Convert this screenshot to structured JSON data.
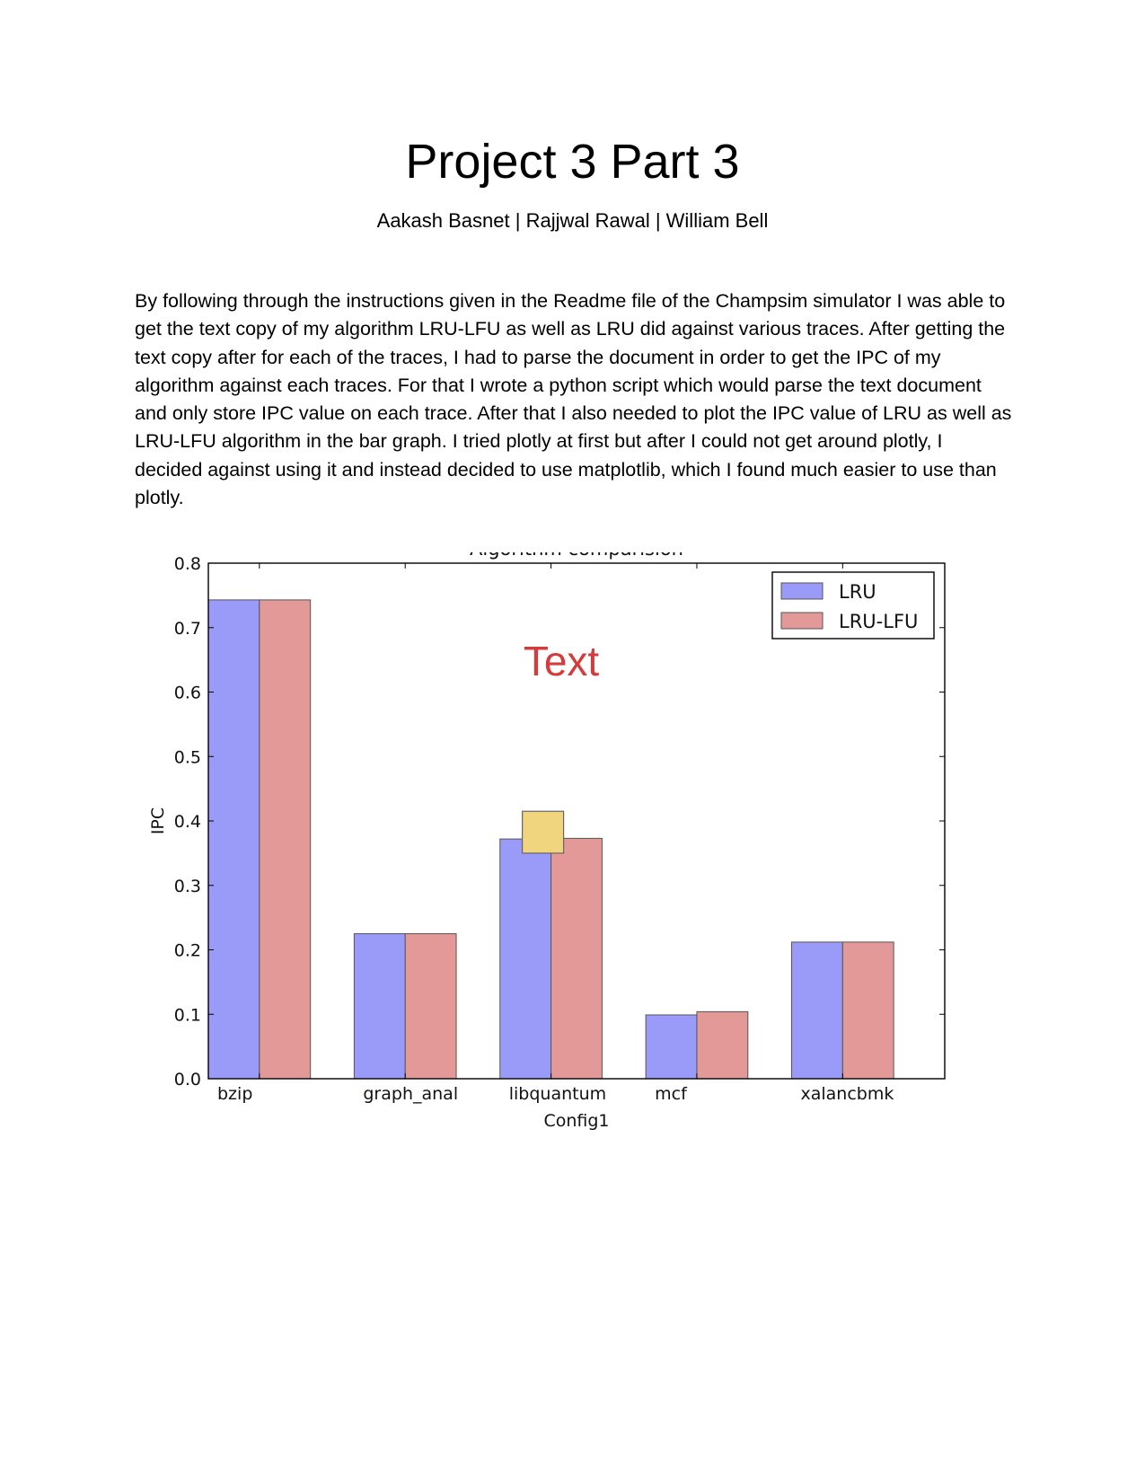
{
  "document": {
    "title": "Project 3 Part 3",
    "authors": "Aakash Basnet | Rajjwal Rawal | William Bell",
    "body": "By following through the instructions given in the Readme file of the Champsim simulator I was able to get the text copy of my algorithm LRU-LFU as well as LRU did against various traces. After getting the text copy after for each of the traces, I had to parse the document in order to get the IPC of my algorithm against each traces. For that I wrote a python script which would parse the text document and only store IPC value on each trace. After that I also needed to plot the IPC value of LRU as well as LRU-LFU algorithm in the bar graph. I tried plotly at first but after I could not get around plotly, I decided against using it and instead decided to use matplotlib, which I found much easier to use than plotly."
  },
  "chart_data": {
    "type": "bar",
    "title": "Algorithm comparision",
    "xlabel": "Config1",
    "ylabel": "IPC",
    "categories": [
      "bzip",
      "graph_anal",
      "libquantum",
      "mcf",
      "xalancbmk"
    ],
    "series": [
      {
        "name": "LRU",
        "values": [
          0.743,
          0.225,
          0.372,
          0.099,
          0.212
        ],
        "color": "#9a9af8"
      },
      {
        "name": "LRU-LFU",
        "values": [
          0.743,
          0.225,
          0.373,
          0.104,
          0.212
        ],
        "color": "#e49999"
      }
    ],
    "ylim": [
      0,
      0.8
    ],
    "yticks": [
      "0.0",
      "0.1",
      "0.2",
      "0.3",
      "0.4",
      "0.5",
      "0.6",
      "0.7",
      "0.8"
    ],
    "legend_position": "top-right",
    "grid": false,
    "annotation_text": "Text",
    "annotation_color": "#d23c3c",
    "highlight_box_color": "#f0d57e"
  }
}
